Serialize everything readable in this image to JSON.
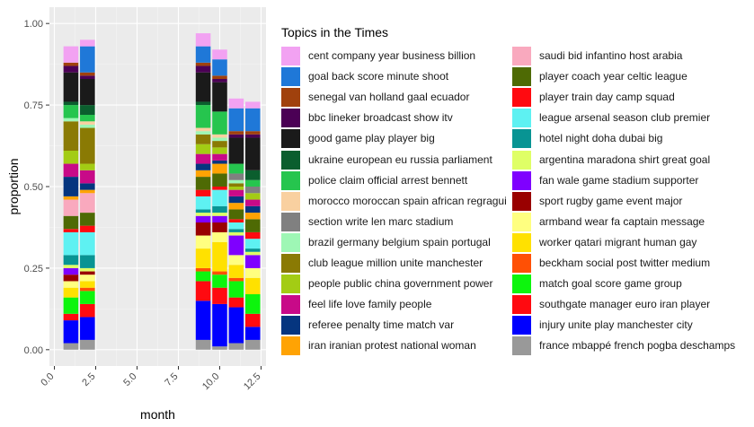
{
  "chart_data": {
    "type": "bar",
    "stacked": true,
    "xlabel": "month",
    "ylabel": "proportion",
    "xlim": [
      -0.3,
      12.8
    ],
    "ylim": [
      -0.05,
      1.05
    ],
    "x_ticks": [
      0.0,
      2.5,
      5.0,
      7.5,
      10.0,
      12.5
    ],
    "x_tick_labels": [
      "0.0",
      "2.5",
      "5.0",
      "7.5",
      "10.0",
      "12.5"
    ],
    "y_ticks": [
      0.0,
      0.25,
      0.5,
      0.75,
      1.0
    ],
    "y_tick_labels": [
      "0.00",
      "0.25",
      "0.50",
      "0.75",
      "1.00"
    ],
    "grid": true,
    "background": "#EBEBEB",
    "legend_title": "Topics in the Times",
    "legend_position": "right",
    "months": [
      1,
      2,
      9,
      10,
      11,
      12
    ],
    "series": [
      {
        "name": "cent company year business billion",
        "color": "#F2A2F2",
        "values": [
          0.05,
          0.02,
          0.04,
          0.03,
          0.03,
          0.02
        ]
      },
      {
        "name": "goal back score minute shoot",
        "color": "#1F78D8",
        "values": [
          0.0,
          0.08,
          0.05,
          0.05,
          0.07,
          0.07
        ]
      },
      {
        "name": "senegal van holland gaal ecuador",
        "color": "#A0410D",
        "values": [
          0.01,
          0.01,
          0.01,
          0.01,
          0.01,
          0.01
        ]
      },
      {
        "name": "bbc lineker broadcast show itv",
        "color": "#4B0055",
        "values": [
          0.02,
          0.01,
          0.02,
          0.01,
          0.01,
          0.01
        ]
      },
      {
        "name": "good game play player big",
        "color": "#1A1A1A",
        "values": [
          0.09,
          0.08,
          0.09,
          0.09,
          0.08,
          0.1
        ]
      },
      {
        "name": "ukraine european eu russia parliament",
        "color": "#0B5E2E",
        "values": [
          0.01,
          0.03,
          0.01,
          0.0,
          0.0,
          0.03
        ]
      },
      {
        "name": "police claim official arrest bennett",
        "color": "#26C54E",
        "values": [
          0.04,
          0.02,
          0.07,
          0.07,
          0.03,
          0.02
        ]
      },
      {
        "name": "morocco moroccan spain african regragui",
        "color": "#F9D0A0",
        "values": [
          0.0,
          0.01,
          0.01,
          0.01,
          0.0,
          0.0
        ]
      },
      {
        "name": "section write len marc stadium",
        "color": "#808080",
        "values": [
          0.0,
          0.0,
          0.0,
          0.0,
          0.02,
          0.02
        ]
      },
      {
        "name": "brazil germany belgium spain portugal",
        "color": "#9EF7B5",
        "values": [
          0.01,
          0.01,
          0.01,
          0.01,
          0.01,
          0.0
        ]
      },
      {
        "name": "club league million unite manchester",
        "color": "#8A7A04",
        "values": [
          0.09,
          0.11,
          0.03,
          0.02,
          0.01,
          0.0
        ]
      },
      {
        "name": "people public china government power",
        "color": "#A3CC14",
        "values": [
          0.04,
          0.02,
          0.03,
          0.02,
          0.01,
          0.02
        ]
      },
      {
        "name": "feel life love family people",
        "color": "#C80A88",
        "values": [
          0.04,
          0.04,
          0.03,
          0.02,
          0.02,
          0.02
        ]
      },
      {
        "name": "referee penalty time match var",
        "color": "#05357F",
        "values": [
          0.06,
          0.02,
          0.02,
          0.01,
          0.02,
          0.02
        ]
      },
      {
        "name": "iran iranian protest national woman",
        "color": "#FFA304",
        "values": [
          0.01,
          0.01,
          0.02,
          0.03,
          0.02,
          0.02
        ]
      },
      {
        "name": "saudi bid infantino host arabia",
        "color": "#F9A9BE",
        "values": [
          0.05,
          0.06,
          0.0,
          0.0,
          0.0,
          0.0
        ]
      },
      {
        "name": "player coach year celtic league",
        "color": "#4E6A04",
        "values": [
          0.04,
          0.04,
          0.04,
          0.04,
          0.03,
          0.04
        ]
      },
      {
        "name": "player train day camp squad",
        "color": "#FF0A10",
        "values": [
          0.01,
          0.02,
          0.02,
          0.01,
          0.01,
          0.02
        ]
      },
      {
        "name": "league arsenal season club premier",
        "color": "#5EF1F2",
        "values": [
          0.07,
          0.07,
          0.04,
          0.05,
          0.02,
          0.03
        ]
      },
      {
        "name": "hotel night doha dubai big",
        "color": "#089493",
        "values": [
          0.03,
          0.04,
          0.01,
          0.02,
          0.01,
          0.01
        ]
      },
      {
        "name": "argentina maradona shirt great goal",
        "color": "#DFFF66",
        "values": [
          0.01,
          0.01,
          0.01,
          0.01,
          0.01,
          0.01
        ]
      },
      {
        "name": "fan wale game stadium supporter",
        "color": "#7F00FF",
        "values": [
          0.02,
          0.0,
          0.02,
          0.02,
          0.06,
          0.04
        ]
      },
      {
        "name": "sport rugby game event major",
        "color": "#990000",
        "values": [
          0.02,
          0.01,
          0.04,
          0.03,
          0.0,
          0.0
        ]
      },
      {
        "name": "armband wear fa captain message",
        "color": "#FFFF80",
        "values": [
          0.02,
          0.02,
          0.04,
          0.03,
          0.03,
          0.03
        ]
      },
      {
        "name": "worker qatari migrant human gay",
        "color": "#FFE100",
        "values": [
          0.03,
          0.02,
          0.06,
          0.09,
          0.04,
          0.05
        ]
      },
      {
        "name": "beckham social post twitter medium",
        "color": "#FF5005",
        "values": [
          0.0,
          0.01,
          0.01,
          0.01,
          0.01,
          0.0
        ]
      },
      {
        "name": "match goal score game group",
        "color": "#0DF50D",
        "values": [
          0.05,
          0.04,
          0.03,
          0.04,
          0.05,
          0.06
        ]
      },
      {
        "name": "southgate manager euro iran player",
        "color": "#FF0A10",
        "values": [
          0.02,
          0.04,
          0.06,
          0.05,
          0.03,
          0.04
        ]
      },
      {
        "name": "injury unite play manchester city",
        "color": "#0000FF",
        "values": [
          0.07,
          0.07,
          0.12,
          0.13,
          0.11,
          0.04
        ]
      },
      {
        "name": "france mbappé french pogba deschamps",
        "color": "#999999",
        "values": [
          0.02,
          0.03,
          0.03,
          0.01,
          0.02,
          0.03
        ]
      }
    ]
  }
}
